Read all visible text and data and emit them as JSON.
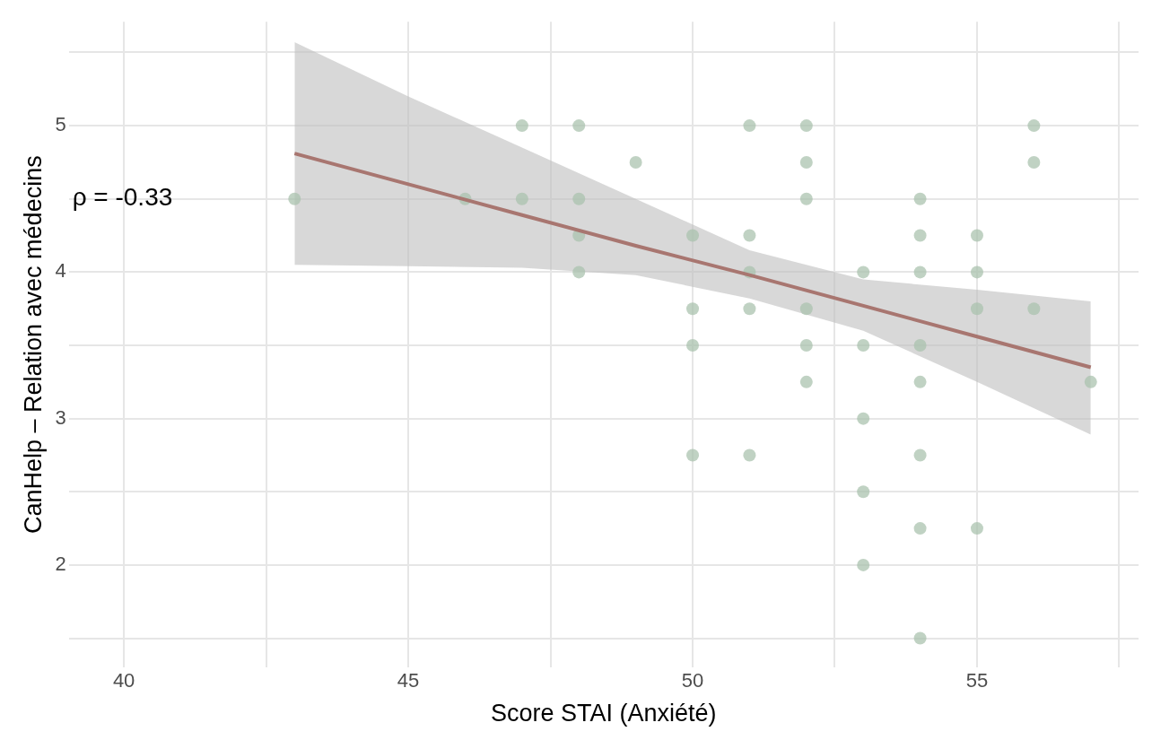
{
  "chart_data": {
    "type": "scatter",
    "xlabel": "Score STAI (Anxiété)",
    "ylabel": "CanHelp – Relation avec médecins",
    "xlim": [
      39.03,
      57.84
    ],
    "ylim": [
      1.3,
      5.71
    ],
    "xticks": [
      40,
      {
        "value": 42.5,
        "label": null
      },
      45,
      {
        "value": 47.5,
        "label": null
      },
      50,
      {
        "value": 52.5,
        "label": null
      },
      55,
      {
        "value": 57.5,
        "label": null
      }
    ],
    "yticks": [
      {
        "value": 1.5,
        "label": null
      },
      2,
      {
        "value": 2.5,
        "label": null
      },
      3,
      {
        "value": 3.5,
        "label": null
      },
      4,
      {
        "value": 4.5,
        "label": null
      },
      5,
      {
        "value": 5.5,
        "label": null
      }
    ],
    "grid": true,
    "legend": false,
    "marker": "circle",
    "annotations": [
      "ρ = -0.33"
    ],
    "series": [
      {
        "color": "#a9c2ad",
        "x": [
          43,
          46,
          47,
          47,
          48,
          48,
          48,
          48,
          49,
          50,
          50,
          50,
          50,
          51,
          51,
          51,
          51,
          51,
          52,
          52,
          52,
          52,
          52,
          52,
          53,
          53,
          53,
          53,
          53,
          54,
          54,
          54,
          54,
          54,
          54,
          54,
          54,
          55,
          55,
          55,
          55,
          56,
          56,
          56,
          57
        ],
        "values": [
          4.5,
          4.5,
          5,
          4.5,
          5,
          4.5,
          4.25,
          4,
          4.75,
          4.25,
          3.75,
          3.5,
          2.75,
          5,
          4.25,
          4,
          3.75,
          2.75,
          5,
          4.75,
          4.5,
          3.75,
          3.5,
          3.25,
          4,
          3.5,
          3,
          2.5,
          2,
          4.5,
          4.25,
          4,
          3.5,
          3.25,
          2.75,
          2.25,
          1.5,
          4.25,
          4,
          3.75,
          2.25,
          5,
          4.75,
          3.75,
          3.25
        ]
      },
      {
        "type": "line",
        "color": "#a87670",
        "marker": "none",
        "x": [
          43,
          45,
          47,
          49,
          51,
          53,
          55,
          57
        ],
        "values": [
          4.81,
          4.6,
          4.39,
          4.18,
          3.98,
          3.77,
          3.56,
          3.35
        ],
        "lower": [
          4.05,
          4.04,
          4.03,
          3.98,
          3.82,
          3.6,
          3.25,
          2.89
        ],
        "upper": [
          5.57,
          5.2,
          4.85,
          4.5,
          4.15,
          3.95,
          3.88,
          3.8
        ]
      }
    ]
  }
}
